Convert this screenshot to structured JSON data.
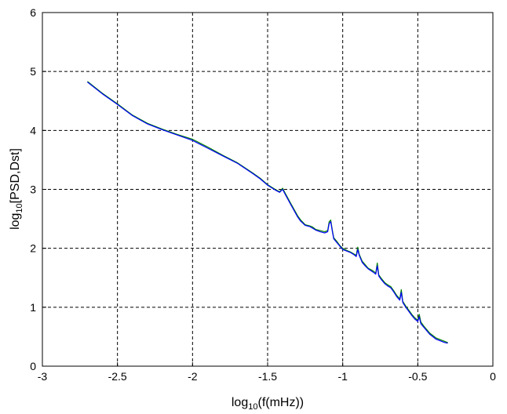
{
  "chart_data": {
    "type": "line",
    "xlabel": {
      "prefix": "log",
      "sub": "10",
      "suffix": "(f(mHz))"
    },
    "ylabel": {
      "prefix": "log",
      "sub": "10",
      "suffix": "[PSD,Dst]"
    },
    "xlim": [
      -3,
      0
    ],
    "ylim": [
      0,
      6
    ],
    "xticks": [
      -3,
      -2.5,
      -2,
      -1.5,
      -1,
      -0.5,
      0
    ],
    "yticks": [
      0,
      1,
      2,
      3,
      4,
      5,
      6
    ],
    "xtick_labels": [
      "-3",
      "-2.5",
      "-2",
      "-1.5",
      "-1",
      "-0.5",
      "0"
    ],
    "ytick_labels": [
      "0",
      "1",
      "2",
      "3",
      "4",
      "5",
      "6"
    ],
    "grid": true,
    "legend": "none",
    "series": [
      {
        "color": "#008000",
        "x": [
          -2.7,
          -2.6,
          -2.5,
          -2.4,
          -2.3,
          -2.2,
          -2.1,
          -2.0,
          -1.9,
          -1.8,
          -1.7,
          -1.6,
          -1.55,
          -1.5,
          -1.45,
          -1.42,
          -1.4,
          -1.38,
          -1.35,
          -1.3,
          -1.28,
          -1.25,
          -1.22,
          -1.2,
          -1.18,
          -1.15,
          -1.12,
          -1.1,
          -1.09,
          -1.08,
          -1.07,
          -1.06,
          -1.04,
          -1.02,
          -1.0,
          -0.97,
          -0.95,
          -0.93,
          -0.91,
          -0.9,
          -0.89,
          -0.87,
          -0.85,
          -0.83,
          -0.8,
          -0.78,
          -0.77,
          -0.76,
          -0.74,
          -0.72,
          -0.7,
          -0.68,
          -0.66,
          -0.64,
          -0.62,
          -0.61,
          -0.6,
          -0.58,
          -0.56,
          -0.54,
          -0.52,
          -0.5,
          -0.49,
          -0.48,
          -0.46,
          -0.44,
          -0.42,
          -0.4,
          -0.38,
          -0.36,
          -0.34,
          -0.32,
          -0.3
        ],
        "y": [
          4.83,
          4.63,
          4.45,
          4.26,
          4.12,
          4.02,
          3.93,
          3.85,
          3.72,
          3.58,
          3.45,
          3.28,
          3.19,
          3.08,
          3.0,
          2.96,
          3.02,
          2.92,
          2.78,
          2.55,
          2.48,
          2.4,
          2.38,
          2.36,
          2.32,
          2.3,
          2.28,
          2.3,
          2.45,
          2.48,
          2.32,
          2.18,
          2.12,
          2.05,
          2.0,
          1.96,
          1.94,
          1.91,
          1.88,
          2.02,
          1.9,
          1.78,
          1.72,
          1.66,
          1.62,
          1.58,
          1.75,
          1.55,
          1.48,
          1.42,
          1.38,
          1.35,
          1.28,
          1.2,
          1.14,
          1.3,
          1.1,
          1.02,
          0.95,
          0.88,
          0.82,
          0.78,
          0.88,
          0.75,
          0.68,
          0.62,
          0.56,
          0.52,
          0.48,
          0.46,
          0.44,
          0.42,
          0.4
        ]
      },
      {
        "color": "#0000ff",
        "x": [
          -2.7,
          -2.6,
          -2.5,
          -2.4,
          -2.3,
          -2.2,
          -2.1,
          -2.0,
          -1.9,
          -1.8,
          -1.7,
          -1.6,
          -1.55,
          -1.5,
          -1.45,
          -1.42,
          -1.4,
          -1.38,
          -1.35,
          -1.3,
          -1.28,
          -1.25,
          -1.22,
          -1.2,
          -1.18,
          -1.15,
          -1.12,
          -1.1,
          -1.09,
          -1.08,
          -1.07,
          -1.06,
          -1.04,
          -1.02,
          -1.0,
          -0.97,
          -0.95,
          -0.93,
          -0.91,
          -0.9,
          -0.89,
          -0.87,
          -0.85,
          -0.83,
          -0.8,
          -0.78,
          -0.77,
          -0.76,
          -0.74,
          -0.72,
          -0.7,
          -0.68,
          -0.66,
          -0.64,
          -0.62,
          -0.61,
          -0.6,
          -0.58,
          -0.56,
          -0.54,
          -0.52,
          -0.5,
          -0.49,
          -0.48,
          -0.46,
          -0.44,
          -0.42,
          -0.4,
          -0.38,
          -0.36,
          -0.34,
          -0.32,
          -0.3
        ],
        "y": [
          4.82,
          4.62,
          4.44,
          4.25,
          4.11,
          4.01,
          3.92,
          3.83,
          3.7,
          3.57,
          3.44,
          3.27,
          3.18,
          3.07,
          2.99,
          2.95,
          3.0,
          2.9,
          2.76,
          2.53,
          2.46,
          2.39,
          2.37,
          2.34,
          2.31,
          2.28,
          2.26,
          2.28,
          2.42,
          2.45,
          2.3,
          2.16,
          2.1,
          2.04,
          1.98,
          1.95,
          1.93,
          1.9,
          1.86,
          1.98,
          1.88,
          1.76,
          1.7,
          1.65,
          1.6,
          1.56,
          1.7,
          1.53,
          1.46,
          1.4,
          1.36,
          1.33,
          1.26,
          1.18,
          1.12,
          1.25,
          1.08,
          1.0,
          0.93,
          0.86,
          0.8,
          0.76,
          0.84,
          0.72,
          0.66,
          0.6,
          0.54,
          0.5,
          0.46,
          0.44,
          0.42,
          0.4,
          0.39
        ]
      }
    ]
  }
}
